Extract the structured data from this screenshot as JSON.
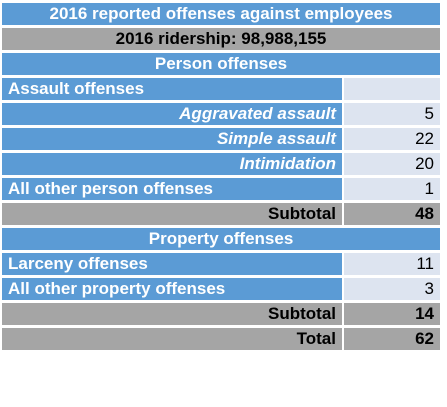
{
  "title": "2016 reported offenses against employees",
  "ridership": "2016 ridership: 98,988,155",
  "person": {
    "heading": "Person offenses",
    "assault_label": "Assault offenses",
    "rows": [
      {
        "label": "Aggravated assault",
        "value": "5"
      },
      {
        "label": "Simple assault",
        "value": "22"
      },
      {
        "label": "Intimidation",
        "value": "20"
      }
    ],
    "other_label": "All other person offenses",
    "other_value": "1",
    "subtotal_label": "Subtotal",
    "subtotal_value": "48"
  },
  "property": {
    "heading": "Property offenses",
    "larceny_label": "Larceny offenses",
    "larceny_value": "11",
    "other_label": "All other property offenses",
    "other_value": "3",
    "subtotal_label": "Subtotal",
    "subtotal_value": "14"
  },
  "total": {
    "label": "Total",
    "value": "62"
  },
  "colors": {
    "header_blue": "#5b9bd5",
    "subtotal_grey": "#a5a5a5",
    "value_pale": "#dde4f0"
  }
}
